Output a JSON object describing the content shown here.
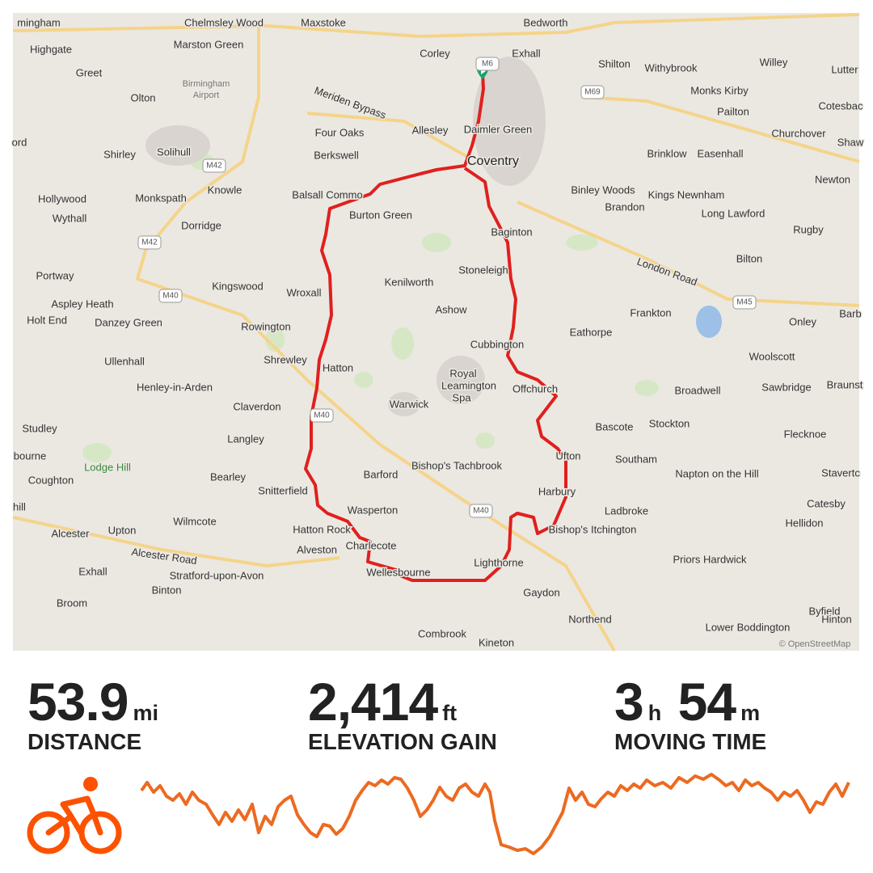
{
  "map": {
    "labels": [
      "mingham",
      "Chelmsley Wood",
      "Maxstoke",
      "Bedworth",
      "Highgate",
      "Marston Green",
      "Corley",
      "Exhall",
      "Shilton",
      "Withybrook",
      "Willey",
      "Lutter",
      "Greet",
      "Birmingham",
      "Airport",
      "Olton",
      "Monks Kirby",
      "Meriden Bypass",
      "Pailton",
      "Cotesbac",
      "Four Oaks",
      "Allesley",
      "Daimler Green",
      "Churchover",
      "ord",
      "Shirley",
      "Solihull",
      "Berkswell",
      "Coventry",
      "Brinklow",
      "Easenhall",
      "Shaw",
      "Newton",
      "Knowle",
      "Balsall Commo",
      "Binley Woods",
      "Kings Newnham",
      "Hollywood",
      "Monkspath",
      "Brandon",
      "Long Lawford",
      "Burton Green",
      "Wythall",
      "Dorridge",
      "Baginton",
      "Rugby",
      "London Road",
      "Stoneleigh",
      "Bilton",
      "Portway",
      "Kingswood",
      "Kenilworth",
      "Wroxall",
      "Aspley Heath",
      "Ashow",
      "Frankton",
      "Holt End",
      "Danzey Green",
      "Rowington",
      "Eathorpe",
      "Onley",
      "Barb",
      "Cubbington",
      "Shrewley",
      "Hatton",
      "Woolscott",
      "Ullenhall",
      "Royal",
      "Leamington",
      "Spa",
      "Offchurch",
      "Henley-in-Arden",
      "Broadwell",
      "Sawbridge",
      "Braunst",
      "Claverdon",
      "Warwick",
      "Bascote",
      "Stockton",
      "Studley",
      "Flecknoe",
      "Langley",
      "Ufton",
      "Southam",
      "bourne",
      "Lodge Hill",
      "Bishop's Tachbrook",
      "Barford",
      "Bearley",
      "Napton on the Hill",
      "Stavertc",
      "Coughton",
      "Snitterfield",
      "Harbury",
      "Wasperton",
      "Catesby",
      "hill",
      "Wilmcote",
      "Ladbroke",
      "Hellidon",
      "Hatton Rock",
      "Bishop's Itchington",
      "Upton",
      "Alcester",
      "Alveston",
      "Charlecote",
      "Alcester Road",
      "Priors Hardwick",
      "Lighthorne",
      "Exhall",
      "Wellesbourne",
      "Binton",
      "Stratford-upon-Avon",
      "Gaydon",
      "Byfield",
      "Broom",
      "Northend",
      "Hinton",
      "Lower Boddington",
      "Combrook",
      "Kineton"
    ],
    "road_shields": [
      "M6",
      "M69",
      "M42",
      "M42",
      "M40",
      "M40",
      "M40",
      "M45"
    ],
    "attribution": "© OpenStreetMap"
  },
  "stats": {
    "distance": {
      "value": 53.9,
      "unit": "mi",
      "label": "DISTANCE"
    },
    "elevation": {
      "value": "2,414",
      "unit": "ft",
      "label": "ELEVATION GAIN"
    },
    "time": {
      "hours": 3,
      "hours_unit": "h",
      "minutes": 54,
      "minutes_unit": "m",
      "label": "MOVING TIME"
    }
  }
}
